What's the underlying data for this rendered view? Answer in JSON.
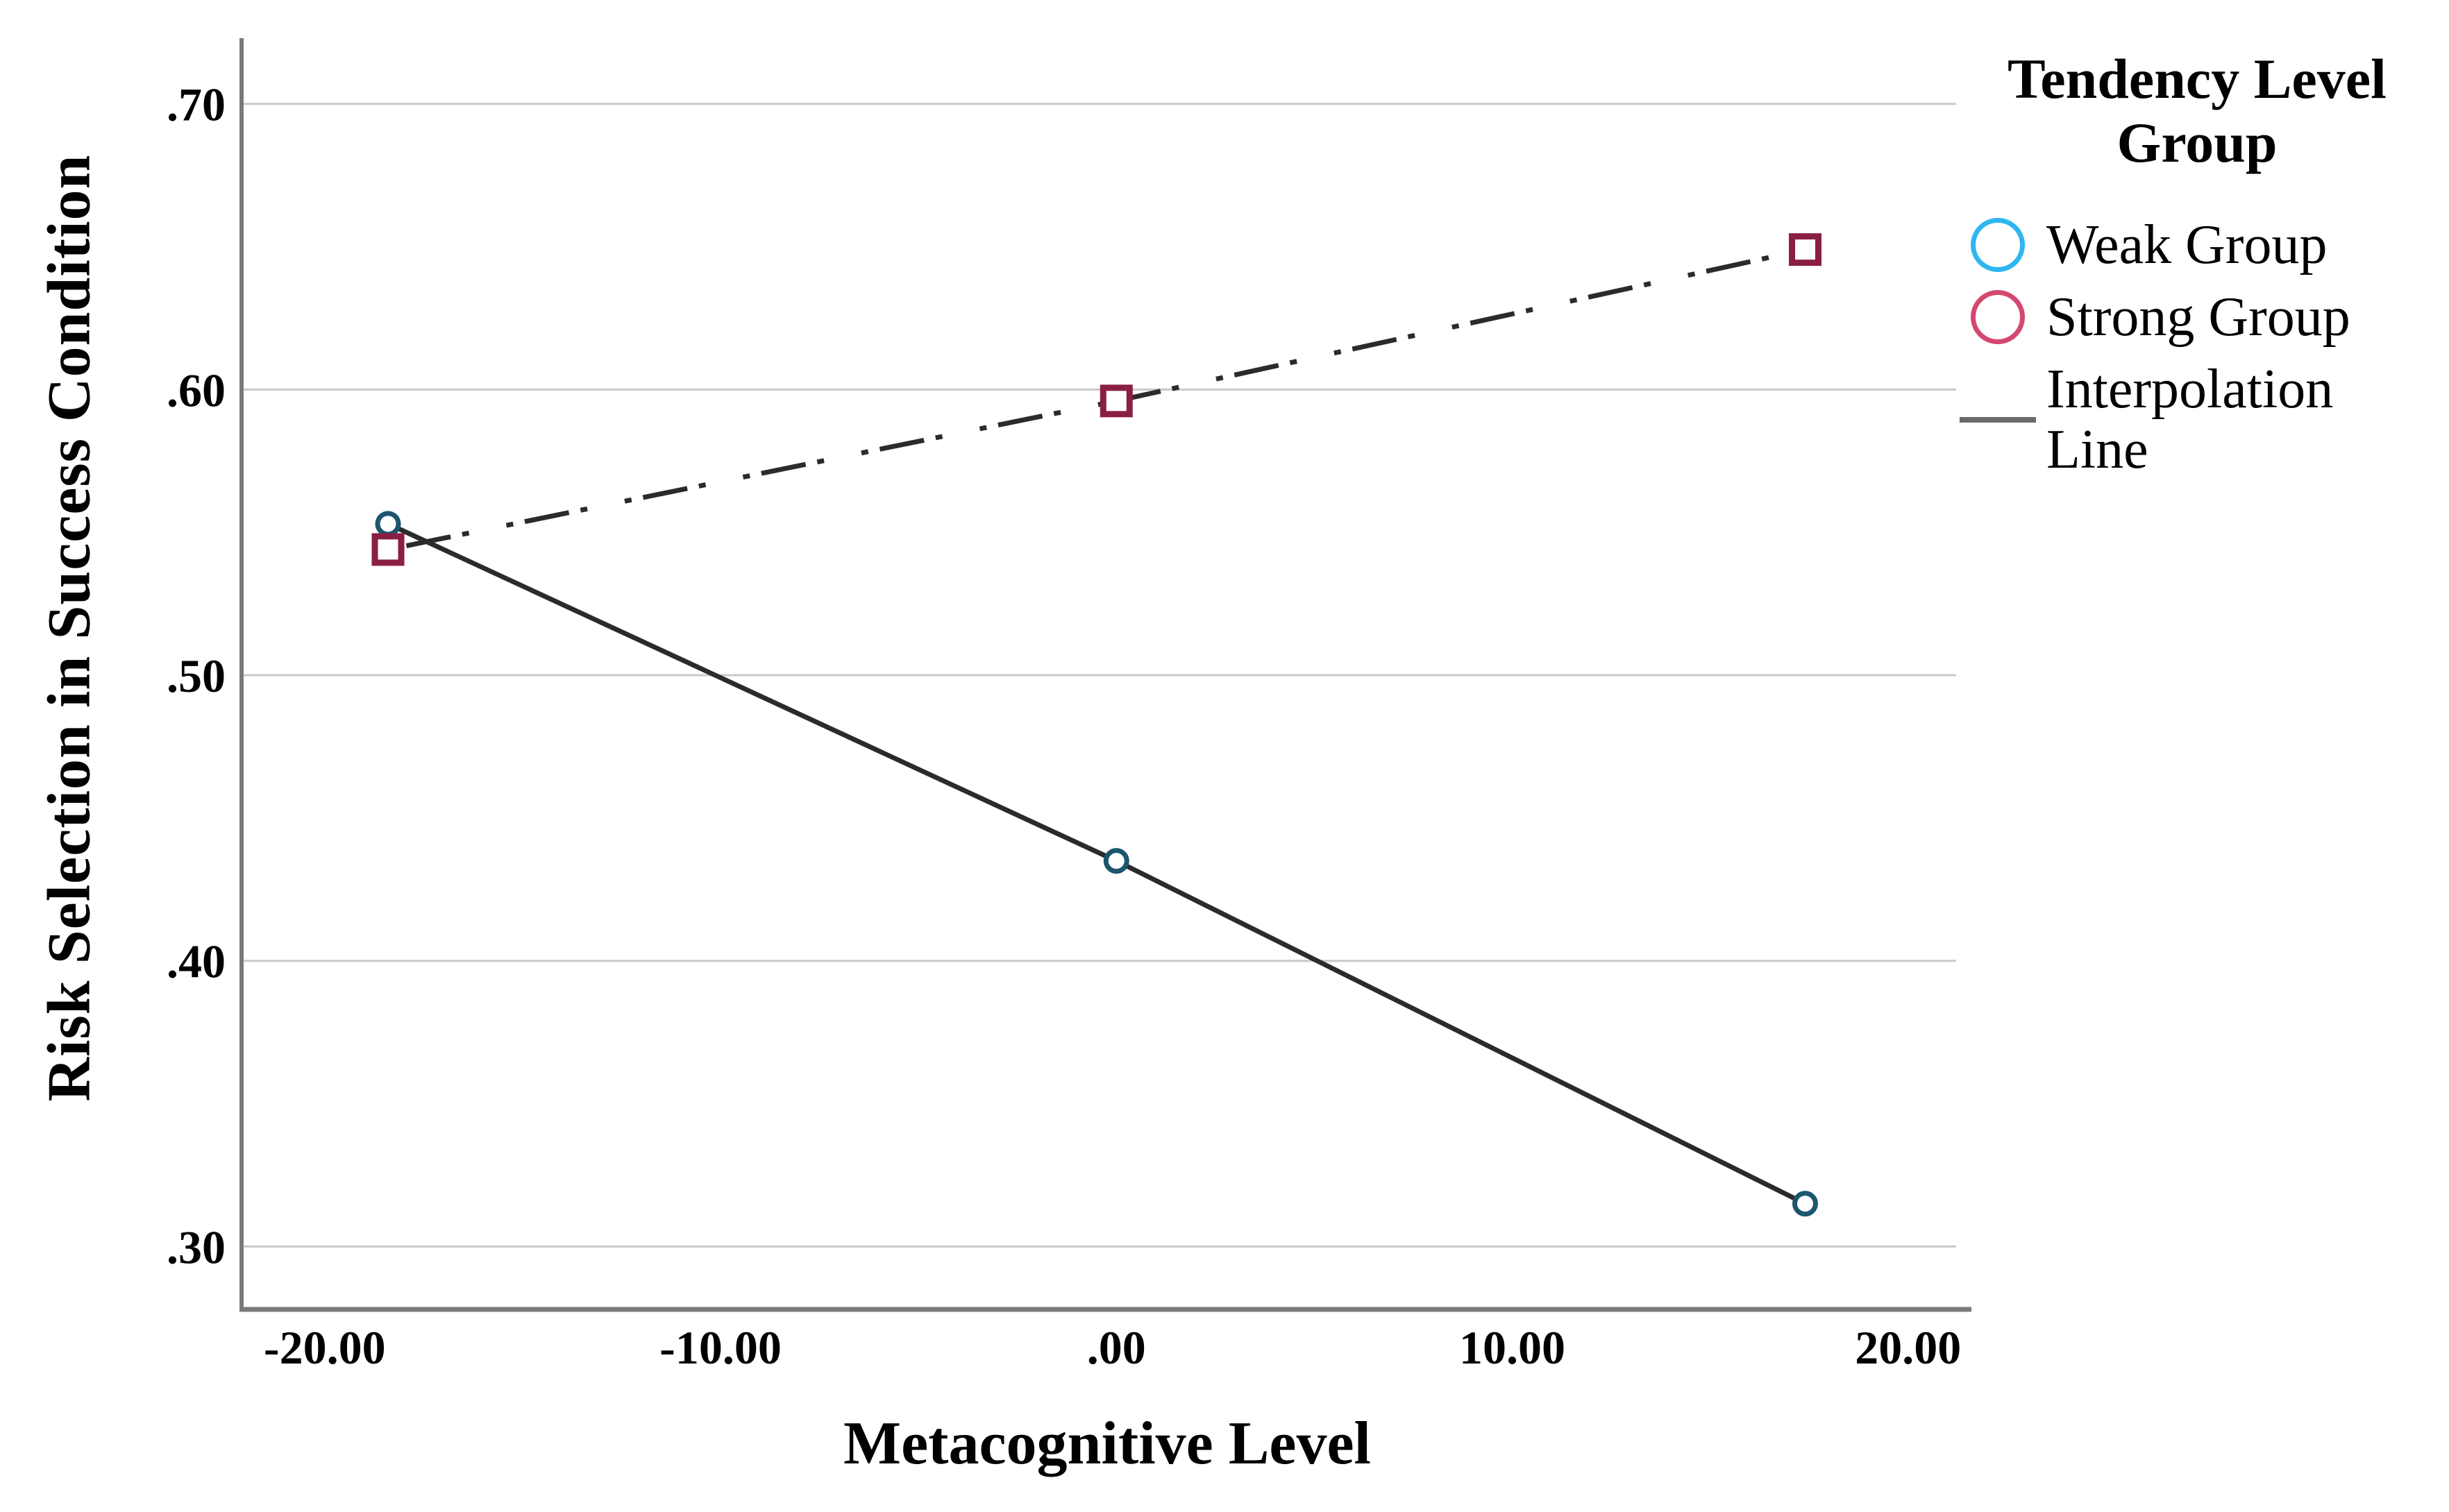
{
  "figure": {
    "background": "#ffffff"
  },
  "chart_data": {
    "type": "line",
    "title": "",
    "xlabel": "Metacognitive Level",
    "ylabel": "Risk Selection in Success Condition",
    "xlim": [
      -22.1,
      21.6
    ],
    "ylim": [
      0.278,
      0.723
    ],
    "grid": "horizontal-only",
    "x_ticks": {
      "values": [
        -20,
        -10,
        0,
        10,
        20
      ],
      "labels": [
        "-20.00",
        "-10.00",
        ".00",
        "10.00",
        "20.00"
      ]
    },
    "y_ticks": {
      "values": [
        0.3,
        0.4,
        0.5,
        0.6,
        0.7
      ],
      "labels": [
        ".30",
        ".40",
        ".50",
        ".60",
        ".70"
      ]
    },
    "series": [
      {
        "name": "Weak Group",
        "marker": "circle",
        "marker_color": "#1b566f",
        "line_style": "solid",
        "line_color": "#2b2b2b",
        "points": [
          [
            -18.4,
            0.553
          ],
          [
            0,
            0.435
          ],
          [
            17.4,
            0.315
          ]
        ]
      },
      {
        "name": "Strong Group",
        "marker": "square",
        "marker_color": "#8a1e44",
        "line_style": "dashdot",
        "line_color": "#2b2b2b",
        "points": [
          [
            -18.4,
            0.544
          ],
          [
            0,
            0.596
          ],
          [
            17.4,
            0.649
          ]
        ]
      }
    ],
    "legend": {
      "position": "top-right",
      "title": "Tendency Level Group",
      "entries": [
        {
          "label": "Weak Group",
          "swatch": "circle",
          "color": "#2eb6f0"
        },
        {
          "label": "Strong Group",
          "swatch": "circle",
          "color": "#d4486f"
        },
        {
          "label": "Interpolation Line",
          "swatch": "line",
          "color": "#6a6a6a"
        }
      ]
    },
    "colors": {
      "gridline": "#c9c9c9",
      "axis": "#7a7a7a",
      "tick_text": "#000000"
    }
  }
}
